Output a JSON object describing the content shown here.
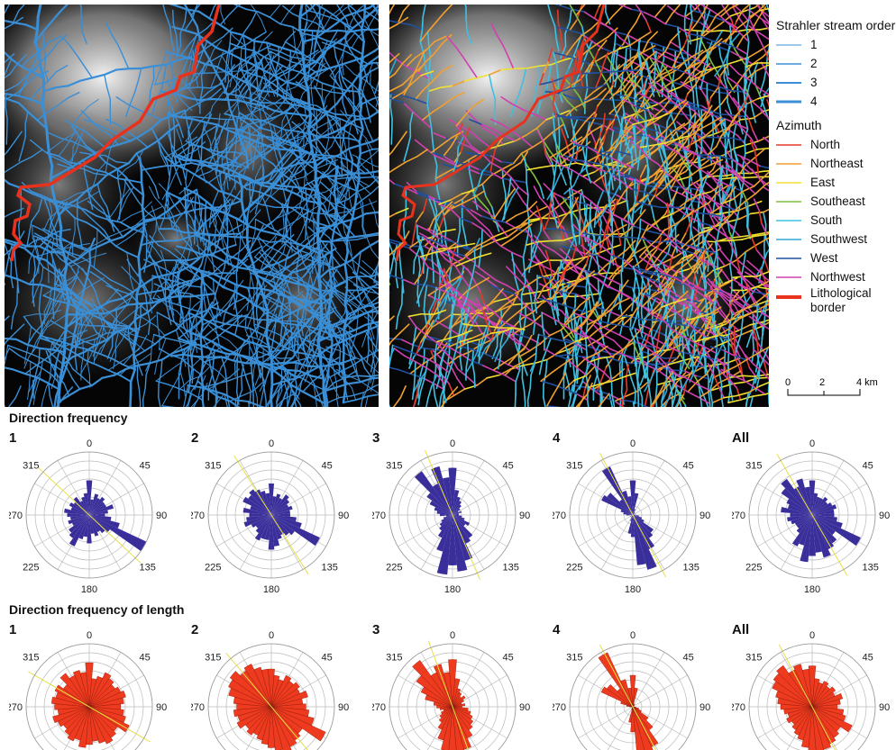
{
  "legend": {
    "strahler_title": "Strahler stream order",
    "orders": [
      {
        "label": "1",
        "width": 1
      },
      {
        "label": "2",
        "width": 1.5
      },
      {
        "label": "3",
        "width": 2
      },
      {
        "label": "4",
        "width": 3
      }
    ],
    "stream_color": "#3a8fd6",
    "azimuth_title": "Azimuth",
    "azimuths": [
      {
        "label": "North",
        "color": "#e53a2a"
      },
      {
        "label": "Northeast",
        "color": "#f0a030"
      },
      {
        "label": "East",
        "color": "#f0e030"
      },
      {
        "label": "Southeast",
        "color": "#7ac040"
      },
      {
        "label": "South",
        "color": "#40c0e0"
      },
      {
        "label": "Southwest",
        "color": "#30a8d8"
      },
      {
        "label": "West",
        "color": "#2050a0"
      },
      {
        "label": "Northwest",
        "color": "#d040b0"
      }
    ],
    "border_label_line1": "Lithological",
    "border_label_line2": "border",
    "border_color": "#e8321e"
  },
  "scalebar": {
    "ticks": [
      "0",
      "2",
      "4 km"
    ]
  },
  "sections": {
    "frequency_title": "Direction frequency",
    "length_title": "Direction frequency of length"
  },
  "rose_axis_labels": {
    "n": "0",
    "ne": "45",
    "e": "90",
    "se": "135",
    "s": "180",
    "sw": "225",
    "w": "270",
    "nw": "315"
  },
  "colors": {
    "frequency_fill": "#3a2f9a",
    "length_fill": "#ee3a1e",
    "mean_line": "#e8e040"
  },
  "chart_data": [
    {
      "type": "rose",
      "row": "Direction frequency",
      "label": "1",
      "mean_azimuth": 133,
      "values": [
        0.55,
        0.25,
        0.35,
        0.3,
        0.35,
        0.3,
        0.3,
        0.4,
        0.3,
        0.25,
        0.35,
        0.5,
        1.0,
        0.4,
        0.35,
        0.3,
        0.35,
        0.3,
        0.45,
        0.35,
        0.4,
        0.55,
        0.45,
        0.4,
        0.3,
        0.35,
        0.3,
        0.35,
        0.4,
        0.3,
        0.35,
        0.3,
        0.35,
        0.25,
        0.3,
        0.35
      ]
    },
    {
      "type": "rose",
      "row": "Direction frequency",
      "label": "2",
      "mean_azimuth": 148,
      "values": [
        0.5,
        0.3,
        0.35,
        0.3,
        0.4,
        0.35,
        0.3,
        0.35,
        0.3,
        0.3,
        0.4,
        0.5,
        0.85,
        0.45,
        0.4,
        0.35,
        0.4,
        0.5,
        0.55,
        0.4,
        0.4,
        0.45,
        0.35,
        0.3,
        0.35,
        0.45,
        0.4,
        0.35,
        0.45,
        0.35,
        0.5,
        0.45,
        0.5,
        0.45,
        0.4,
        0.35
      ]
    },
    {
      "type": "rose",
      "row": "Direction frequency",
      "label": "3",
      "mean_azimuth": 157,
      "values": [
        0.75,
        0.4,
        0.3,
        0.25,
        0.2,
        0.15,
        0.1,
        0.15,
        0.1,
        0.1,
        0.15,
        0.2,
        0.3,
        0.25,
        0.45,
        0.5,
        0.75,
        0.9,
        0.8,
        0.95,
        0.6,
        0.4,
        0.3,
        0.25,
        0.2,
        0.15,
        0.1,
        0.2,
        0.25,
        0.3,
        0.4,
        0.5,
        0.85,
        0.55,
        0.8,
        0.6
      ]
    },
    {
      "type": "rose",
      "row": "Direction frequency",
      "label": "4",
      "mean_azimuth": 152,
      "values": [
        0.55,
        0.35,
        0.1,
        0.05,
        0.05,
        0.0,
        0.0,
        0.05,
        0.0,
        0.0,
        0.1,
        0.15,
        0.2,
        0.4,
        0.45,
        0.6,
        0.9,
        0.8,
        0.35,
        0.3,
        0.1,
        0.05,
        0.0,
        0.0,
        0.05,
        0.0,
        0.0,
        0.1,
        0.15,
        0.2,
        0.55,
        0.5,
        0.3,
        0.85,
        0.4,
        0.3
      ]
    },
    {
      "type": "rose",
      "row": "Direction frequency",
      "label": "All",
      "mean_azimuth": 150,
      "values": [
        0.55,
        0.35,
        0.3,
        0.3,
        0.35,
        0.3,
        0.35,
        0.4,
        0.35,
        0.35,
        0.4,
        0.5,
        0.85,
        0.45,
        0.55,
        0.6,
        0.7,
        0.6,
        0.65,
        0.75,
        0.5,
        0.55,
        0.35,
        0.3,
        0.3,
        0.35,
        0.4,
        0.35,
        0.5,
        0.4,
        0.45,
        0.6,
        0.7,
        0.5,
        0.6,
        0.45
      ]
    },
    {
      "type": "rose",
      "row": "Direction frequency of length",
      "label": "1",
      "mean_azimuth": 120,
      "values": [
        0.7,
        0.45,
        0.5,
        0.6,
        0.55,
        0.5,
        0.55,
        0.6,
        0.55,
        0.5,
        0.55,
        0.6,
        0.7,
        0.55,
        0.6,
        0.65,
        0.6,
        0.55,
        0.6,
        0.65,
        0.55,
        0.6,
        0.55,
        0.5,
        0.55,
        0.6,
        0.5,
        0.55,
        0.6,
        0.55,
        0.6,
        0.5,
        0.65,
        0.55,
        0.6,
        0.55
      ]
    },
    {
      "type": "rose",
      "row": "Direction frequency of length",
      "label": "2",
      "mean_azimuth": 140,
      "values": [
        0.6,
        0.5,
        0.45,
        0.55,
        0.5,
        0.55,
        0.5,
        0.6,
        0.5,
        0.55,
        0.6,
        0.7,
        0.95,
        0.6,
        0.65,
        0.7,
        0.75,
        0.7,
        0.65,
        0.6,
        0.55,
        0.5,
        0.55,
        0.5,
        0.6,
        0.55,
        0.6,
        0.55,
        0.6,
        0.7,
        0.75,
        0.8,
        0.7,
        0.75,
        0.65,
        0.6
      ]
    },
    {
      "type": "rose",
      "row": "Direction frequency of length",
      "label": "3",
      "mean_azimuth": 160,
      "values": [
        0.75,
        0.45,
        0.3,
        0.25,
        0.2,
        0.25,
        0.2,
        0.15,
        0.2,
        0.15,
        0.25,
        0.3,
        0.35,
        0.4,
        0.45,
        0.55,
        0.7,
        0.8,
        0.75,
        0.7,
        0.55,
        0.4,
        0.3,
        0.25,
        0.2,
        0.15,
        0.2,
        0.25,
        0.3,
        0.45,
        0.55,
        0.7,
        0.9,
        0.6,
        0.7,
        0.55
      ]
    },
    {
      "type": "rose",
      "row": "Direction frequency of length",
      "label": "4",
      "mean_azimuth": 152,
      "values": [
        0.5,
        0.3,
        0.05,
        0.0,
        0.05,
        0.0,
        0.0,
        0.0,
        0.0,
        0.0,
        0.05,
        0.1,
        0.15,
        0.3,
        0.45,
        0.7,
        1.0,
        0.9,
        0.4,
        0.25,
        0.05,
        0.0,
        0.0,
        0.0,
        0.0,
        0.0,
        0.0,
        0.05,
        0.1,
        0.2,
        0.55,
        0.5,
        0.35,
        0.95,
        0.45,
        0.3
      ]
    },
    {
      "type": "rose",
      "row": "Direction frequency of length",
      "label": "All",
      "mean_azimuth": 152,
      "values": [
        0.65,
        0.45,
        0.4,
        0.45,
        0.4,
        0.45,
        0.4,
        0.5,
        0.45,
        0.4,
        0.5,
        0.55,
        0.7,
        0.55,
        0.6,
        0.65,
        0.7,
        0.75,
        0.7,
        0.65,
        0.55,
        0.5,
        0.45,
        0.4,
        0.45,
        0.4,
        0.45,
        0.5,
        0.55,
        0.6,
        0.7,
        0.75,
        0.8,
        0.65,
        0.7,
        0.6
      ]
    }
  ]
}
